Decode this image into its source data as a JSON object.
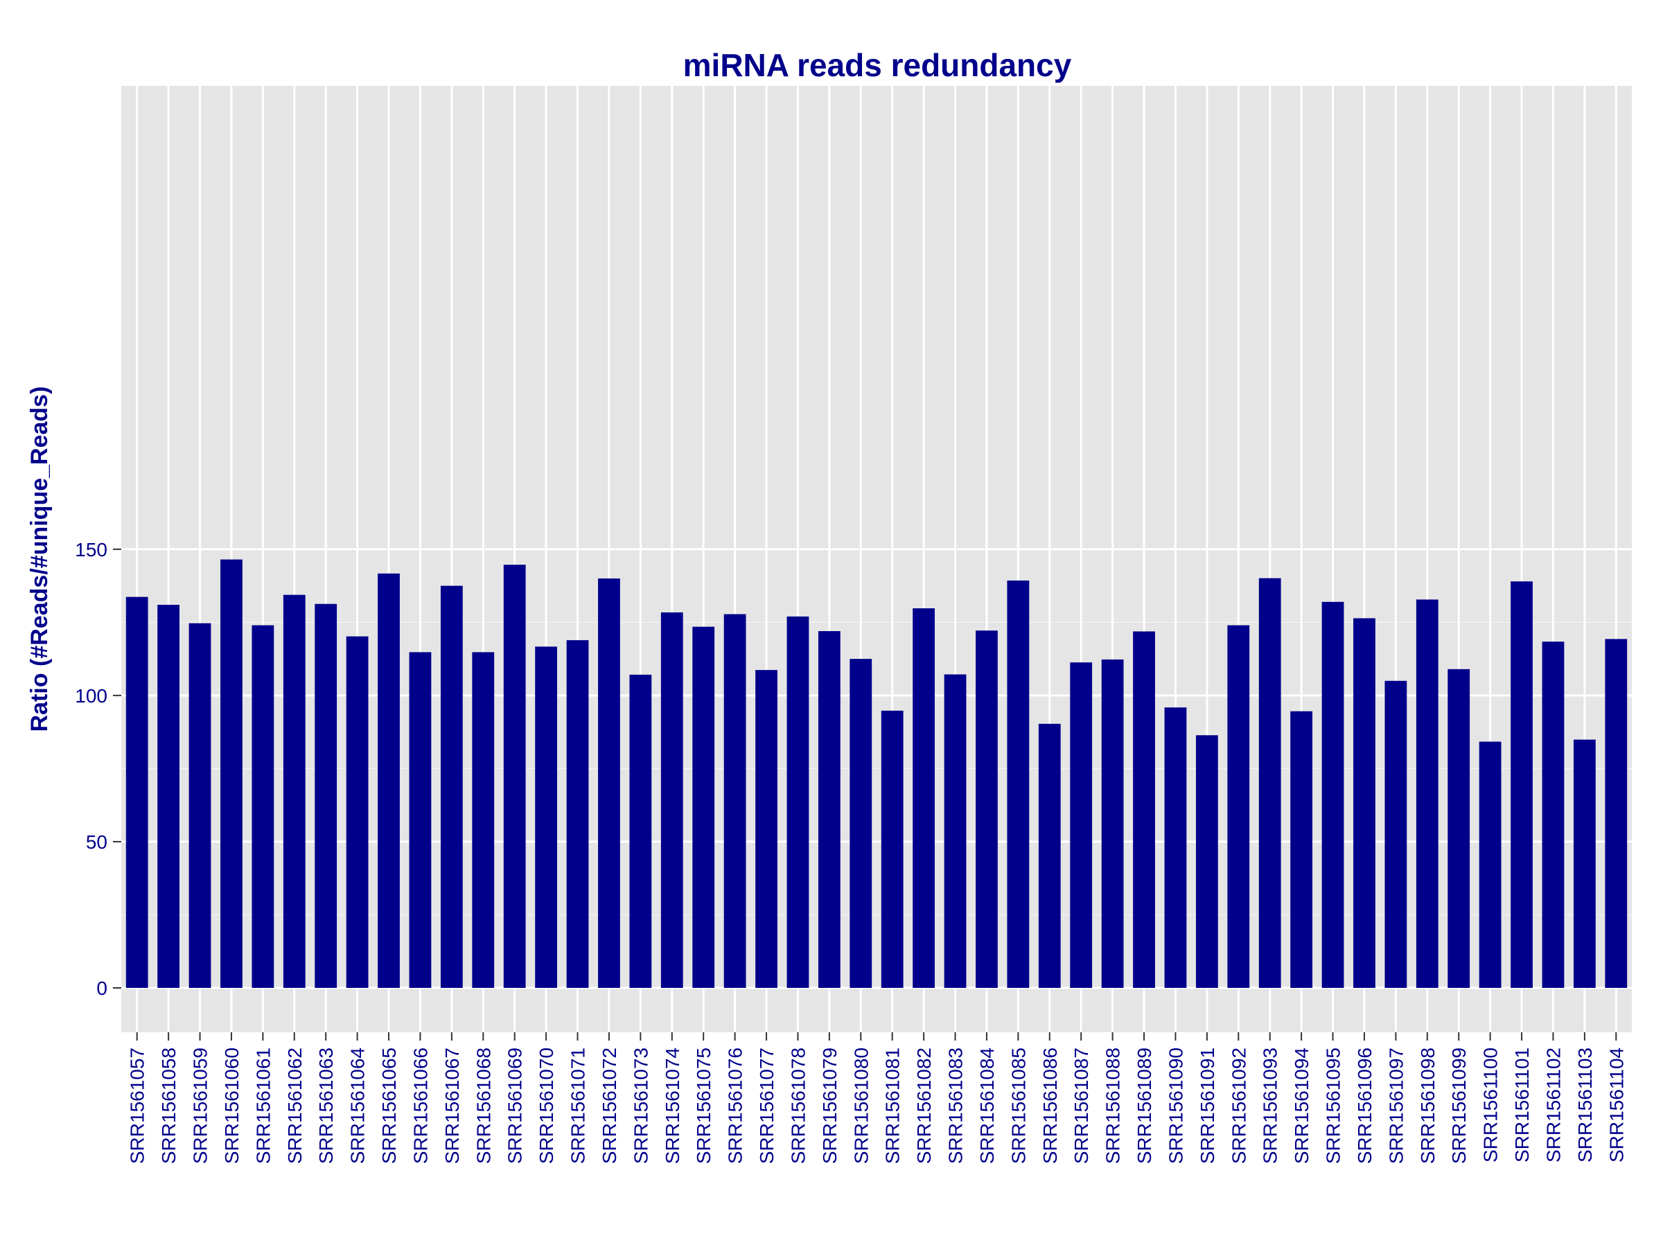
{
  "chart_data": {
    "type": "bar",
    "title": "miRNA reads redundancy",
    "xlabel": "",
    "ylabel": "Ratio (#Reads/#unique_Reads)",
    "ylim": [
      -6,
      154
    ],
    "yticks": [
      0,
      50,
      100,
      150
    ],
    "grid": true,
    "legend": "none",
    "colors": {
      "bar": "#00008B",
      "panel": "#E5E5E5",
      "grid": "#FFFFFF",
      "text": "#00008B"
    },
    "categories": [
      "SRR1561057",
      "SRR1561058",
      "SRR1561059",
      "SRR1561060",
      "SRR1561061",
      "SRR1561062",
      "SRR1561063",
      "SRR1561064",
      "SRR1561065",
      "SRR1561066",
      "SRR1561067",
      "SRR1561068",
      "SRR1561069",
      "SRR1561070",
      "SRR1561071",
      "SRR1561072",
      "SRR1561073",
      "SRR1561074",
      "SRR1561075",
      "SRR1561076",
      "SRR1561077",
      "SRR1561078",
      "SRR1561079",
      "SRR1561080",
      "SRR1561081",
      "SRR1561082",
      "SRR1561083",
      "SRR1561084",
      "SRR1561085",
      "SRR1561086",
      "SRR1561087",
      "SRR1561088",
      "SRR1561089",
      "SRR1561090",
      "SRR1561091",
      "SRR1561092",
      "SRR1561093",
      "SRR1561094",
      "SRR1561095",
      "SRR1561096",
      "SRR1561097",
      "SRR1561098",
      "SRR1561099",
      "SRR1561100",
      "SRR1561101",
      "SRR1561102",
      "SRR1561103",
      "SRR1561104"
    ],
    "values": [
      133.7,
      131.0,
      124.7,
      146.5,
      124.0,
      134.4,
      131.3,
      120.2,
      141.7,
      114.8,
      137.5,
      114.8,
      144.7,
      116.7,
      118.9,
      140.0,
      107.1,
      128.4,
      123.5,
      127.8,
      108.7,
      127.0,
      122.0,
      112.5,
      94.8,
      129.8,
      107.2,
      122.2,
      139.3,
      90.3,
      111.3,
      112.3,
      121.9,
      95.9,
      86.4,
      124.0,
      140.1,
      94.6,
      132.0,
      126.4,
      105.0,
      132.8,
      109.0,
      84.2,
      139.0,
      118.4,
      84.9,
      119.3
    ]
  }
}
